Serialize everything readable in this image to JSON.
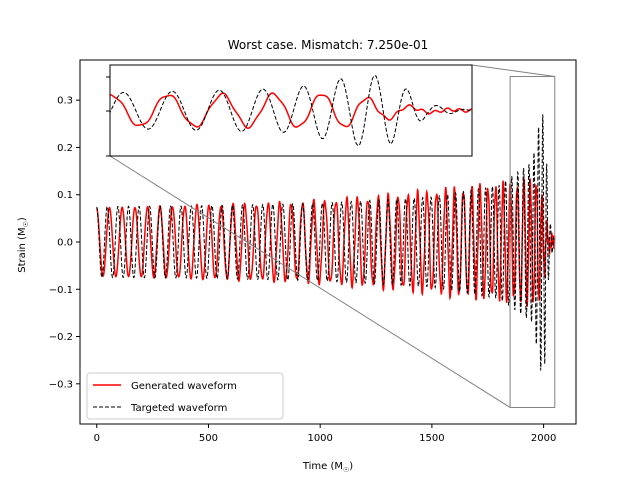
{
  "chart_data": {
    "type": "line",
    "title": "Worst case. Mismatch: 7.250e-01",
    "xlabel": "Time (M",
    "xlabel_sub": "☉",
    "xlabel_close": ")",
    "ylabel": "Strain (M",
    "ylabel_sub": "☉",
    "ylabel_close": ")",
    "xlim": [
      -75,
      2145
    ],
    "ylim": [
      -0.385,
      0.385
    ],
    "xticks": [
      0,
      500,
      1000,
      1500,
      2000
    ],
    "xtick_labels": [
      "0",
      "500",
      "1000",
      "1500",
      "2000"
    ],
    "yticks": [
      -0.3,
      -0.2,
      -0.1,
      0.0,
      0.1,
      0.2,
      0.3
    ],
    "ytick_labels": [
      "−0.3",
      "−0.2",
      "−0.1",
      "0.0",
      "0.1",
      "0.2",
      "0.3"
    ],
    "grid": false,
    "legend_position": "lower-left",
    "series": [
      {
        "name": "Generated waveform",
        "color": "#ff0000",
        "style": "solid",
        "end_x": 2050,
        "envelope": [
          [
            0,
            0.072
          ],
          [
            300,
            0.075
          ],
          [
            900,
            0.082
          ],
          [
            1300,
            0.095
          ],
          [
            1600,
            0.11
          ],
          [
            1850,
            0.12
          ],
          [
            1980,
            0.13
          ],
          [
            2020,
            0.02
          ],
          [
            2050,
            0.0
          ]
        ],
        "period": [
          [
            0,
            58
          ],
          [
            1000,
            50
          ],
          [
            1600,
            40
          ],
          [
            1900,
            30
          ],
          [
            2000,
            24
          ],
          [
            2050,
            22
          ]
        ]
      },
      {
        "name": "Targeted waveform",
        "color": "#000000",
        "style": "dashed",
        "end_x": 2050,
        "envelope": [
          [
            0,
            0.075
          ],
          [
            400,
            0.076
          ],
          [
            1000,
            0.082
          ],
          [
            1500,
            0.095
          ],
          [
            1800,
            0.12
          ],
          [
            1950,
            0.17
          ],
          [
            1990,
            0.28
          ],
          [
            2005,
            0.26
          ],
          [
            2025,
            0.05
          ],
          [
            2050,
            0.0
          ]
        ],
        "period": [
          [
            0,
            48
          ],
          [
            1000,
            44
          ],
          [
            1600,
            36
          ],
          [
            1900,
            26
          ],
          [
            2000,
            18
          ],
          [
            2050,
            15
          ]
        ]
      }
    ],
    "inset": {
      "xlim": [
        1850,
        2050
      ],
      "ylim": [
        -0.35,
        0.35
      ],
      "xticks": [],
      "yticks": []
    }
  }
}
